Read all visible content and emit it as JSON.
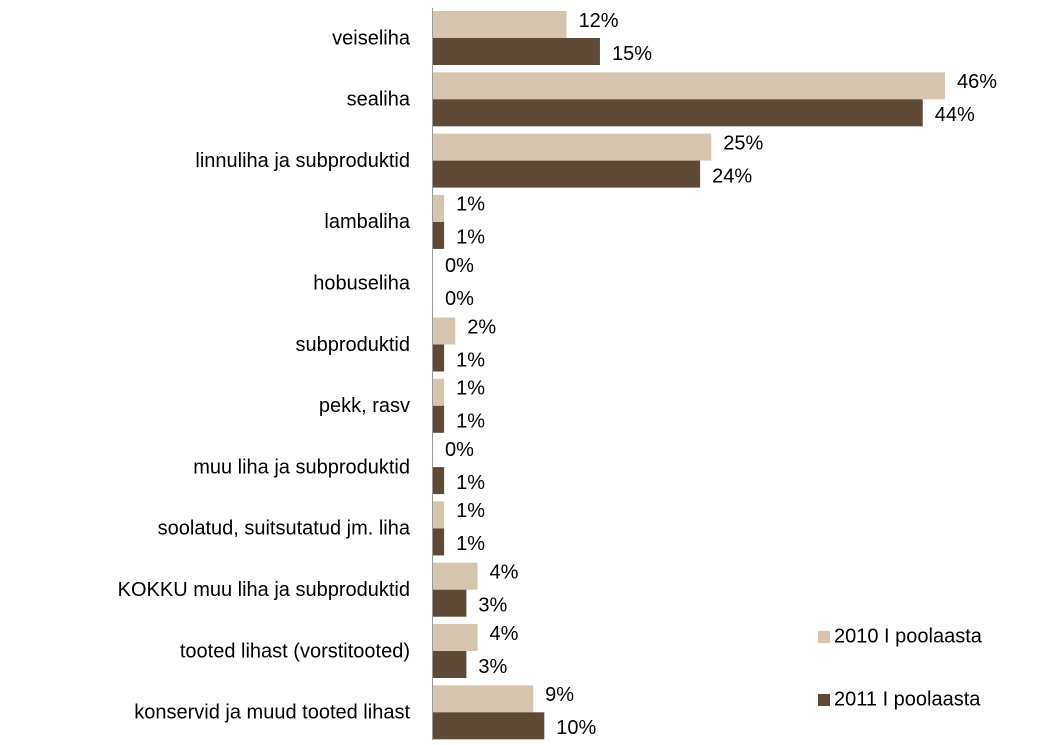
{
  "chart_data": {
    "type": "bar",
    "orientation": "horizontal",
    "categories": [
      "veiseliha",
      "sealiha",
      "linnuliha ja subproduktid",
      "lambaliha",
      "hobuseliha",
      "subproduktid",
      "pekk, rasv",
      "muu liha ja subproduktid",
      "soolatud, suitsutatud jm. liha",
      "KOKKU muu liha ja subproduktid",
      "tooted lihast (vorstitooted)",
      "konservid ja muud tooted lihast"
    ],
    "series": [
      {
        "name": "2010 I poolaasta",
        "color": "#d6c5ae",
        "values": [
          12,
          46,
          25,
          1,
          0,
          2,
          1,
          0,
          1,
          4,
          4,
          9
        ],
        "value_labels": [
          "12%",
          "46%",
          "25%",
          "1%",
          "0%",
          "2%",
          "1%",
          "0%",
          "1%",
          "4%",
          "4%",
          "9%"
        ]
      },
      {
        "name": "2011 I poolaasta",
        "color": "#5f4a38",
        "values": [
          15,
          44,
          24,
          1,
          0,
          1,
          1,
          1,
          1,
          3,
          3,
          10
        ],
        "value_labels": [
          "15%",
          "44%",
          "24%",
          "1%",
          "0%",
          "1%",
          "1%",
          "1%",
          "1%",
          "3%",
          "3%",
          "10%"
        ]
      }
    ],
    "legend": "lower right"
  }
}
